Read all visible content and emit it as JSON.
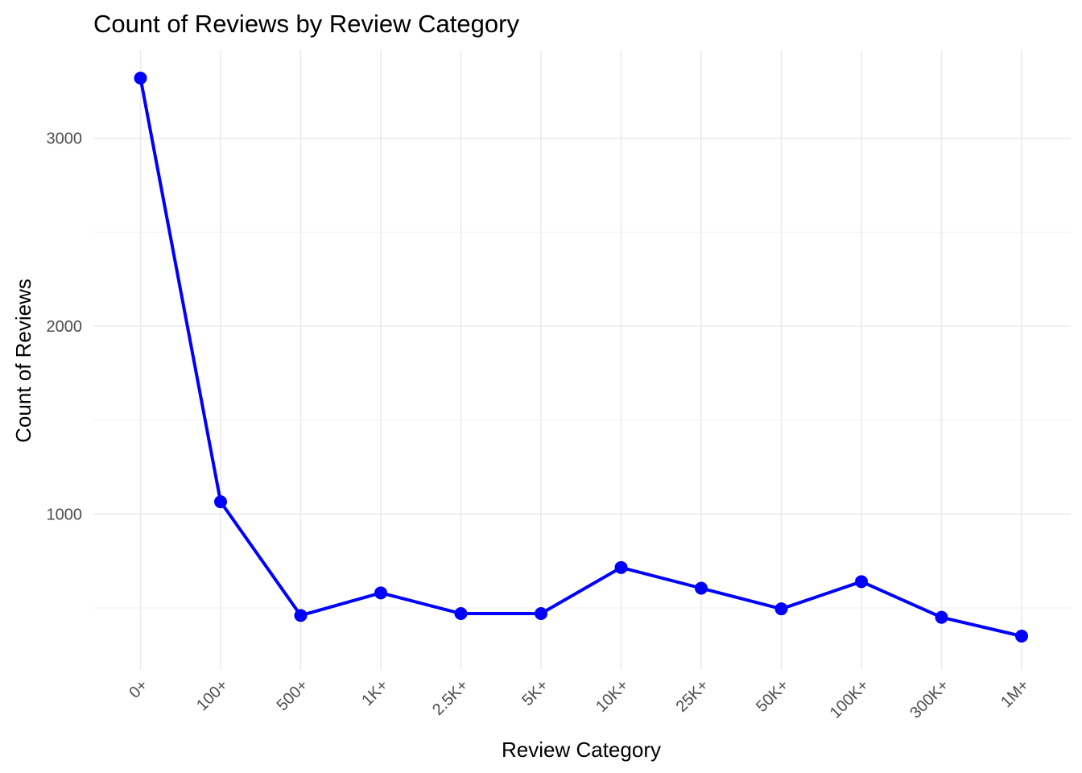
{
  "chart_data": {
    "type": "line",
    "title": "Count of Reviews by Review Category",
    "xlabel": "Review Category",
    "ylabel": "Count of Reviews",
    "categories": [
      "0+",
      "100+",
      "500+",
      "1K+",
      "2.5K+",
      "5K+",
      "10K+",
      "25K+",
      "50K+",
      "100K+",
      "300K+",
      "1M+"
    ],
    "series": [
      {
        "values": [
          3320,
          1065,
          460,
          580,
          470,
          470,
          715,
          605,
          495,
          640,
          450,
          350
        ]
      }
    ],
    "yticks": [
      1000,
      2000,
      3000
    ],
    "ytick_labels": [
      "1000",
      "2000",
      "3000"
    ],
    "ylim": [
      170,
      3470
    ],
    "grid": true,
    "legend": "none",
    "colors": {
      "line": "#0000ff",
      "points": "#0000ff",
      "grid": "#ebebeb",
      "tick_text": "#4d4d4d",
      "background": "#ffffff"
    }
  }
}
